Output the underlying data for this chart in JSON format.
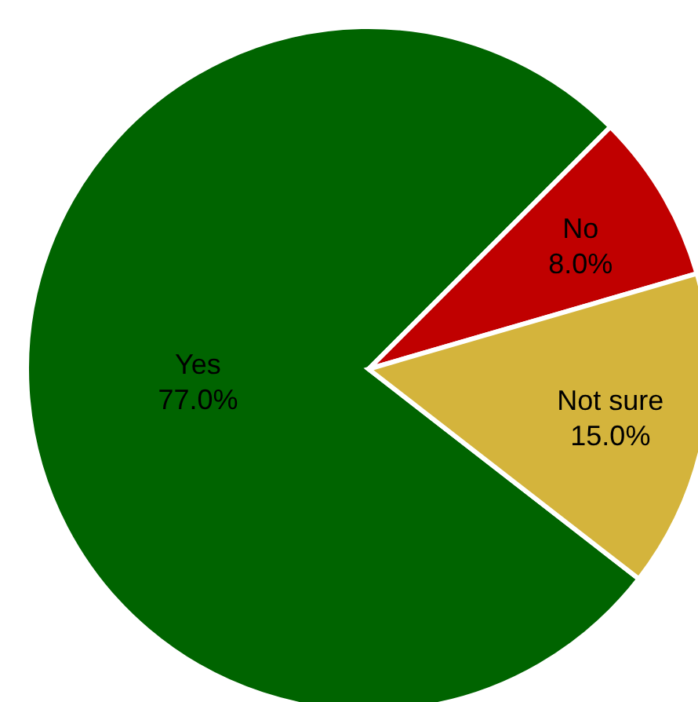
{
  "chart_data": {
    "type": "pie",
    "categories": [
      "Yes",
      "No",
      "Not sure"
    ],
    "values": [
      77,
      8,
      15
    ],
    "colors": [
      "#006400",
      "#c00000",
      "#d4b43c"
    ],
    "value_labels": [
      "77.0%",
      "8.0%",
      "15.0%"
    ],
    "legend": false
  }
}
